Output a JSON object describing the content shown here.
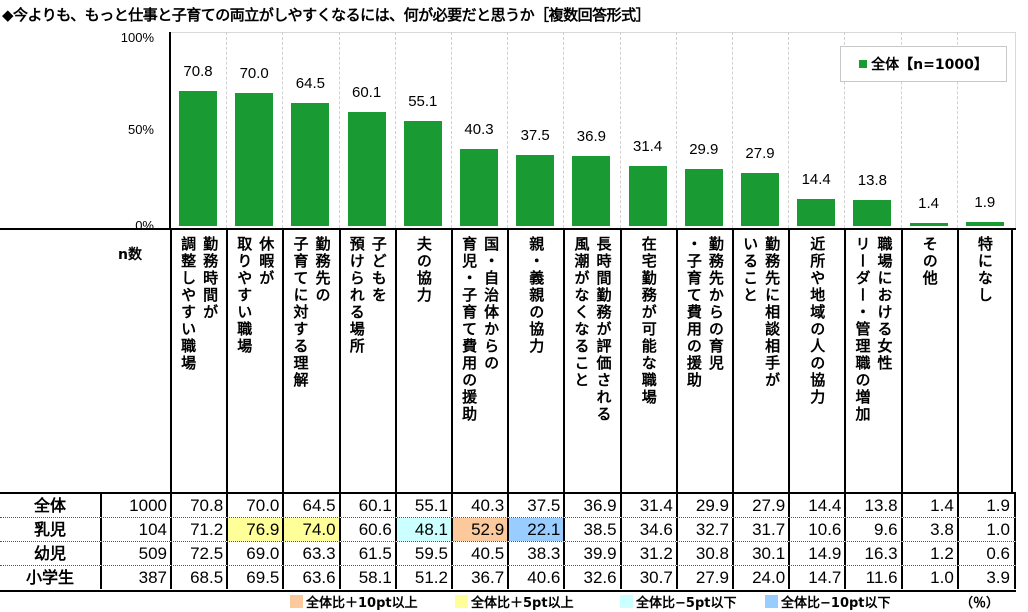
{
  "title": "◆今よりも、もっと仕事と子育ての両立がしやすくなるには、何が必要だと思うか［複数回答形式］",
  "chart_data": {
    "type": "bar",
    "title": "◆今よりも、もっと仕事と子育ての両立がしやすくなるには、何が必要だと思うか［複数回答形式］",
    "ylim": [
      0,
      100
    ],
    "yticks": [
      "0%",
      "50%",
      "100%"
    ],
    "legend": "全体【n=1000】",
    "legend_position": "top-right",
    "categories": [
      "勤務時間が\n調整しやすい職場",
      "休暇が\n取りやすい職場",
      "勤務先の\n子育てに対する理解",
      "子どもを\n預けられる場所",
      "夫の協力",
      "国・自治体からの\n育児・子育て費用の援助",
      "親・義親の協力",
      "長時間勤務が評価される\n風潮がなくなること",
      "在宅勤務が可能な職場",
      "勤務先からの育児\n・子育て費用の援助",
      "勤務先に相談相手が\nいること",
      "近所や地域の人の協力",
      "職場における女性\nリーダー・管理職の増加",
      "その他",
      "特になし"
    ],
    "values": [
      70.8,
      70.0,
      64.5,
      60.1,
      55.1,
      40.3,
      37.5,
      36.9,
      31.4,
      29.9,
      27.9,
      14.4,
      13.8,
      1.4,
      1.9
    ],
    "value_labels": [
      "70.8",
      "70.0",
      "64.5",
      "60.1",
      "55.1",
      "40.3",
      "37.5",
      "36.9",
      "31.4",
      "29.9",
      "27.9",
      "14.4",
      "13.8",
      "1.4",
      "1.9"
    ],
    "color": "#1a9a32"
  },
  "table": {
    "n_header": "n数",
    "rows": [
      {
        "label": "全体",
        "n": "1000",
        "values": [
          "70.8",
          "70.0",
          "64.5",
          "60.1",
          "55.1",
          "40.3",
          "37.5",
          "36.9",
          "31.4",
          "29.9",
          "27.9",
          "14.4",
          "13.8",
          "1.4",
          "1.9"
        ],
        "hl": [
          "",
          "",
          "",
          "",
          "",
          "",
          "",
          "",
          "",
          "",
          "",
          "",
          "",
          "",
          ""
        ]
      },
      {
        "label": "乳児",
        "n": "104",
        "values": [
          "71.2",
          "76.9",
          "74.0",
          "60.6",
          "48.1",
          "52.9",
          "22.1",
          "38.5",
          "34.6",
          "32.7",
          "31.7",
          "10.6",
          "9.6",
          "3.8",
          "1.0"
        ],
        "hl": [
          "",
          "p5",
          "p5",
          "",
          "m5",
          "p10",
          "m10",
          "",
          "",
          "",
          "",
          "",
          "",
          "",
          ""
        ]
      },
      {
        "label": "幼児",
        "n": "509",
        "values": [
          "72.5",
          "69.0",
          "63.3",
          "61.5",
          "59.5",
          "40.5",
          "38.3",
          "39.9",
          "31.2",
          "30.8",
          "30.1",
          "14.9",
          "16.3",
          "1.2",
          "0.6"
        ],
        "hl": [
          "",
          "",
          "",
          "",
          "",
          "",
          "",
          "",
          "",
          "",
          "",
          "",
          "",
          "",
          ""
        ]
      },
      {
        "label": "小学生",
        "n": "387",
        "values": [
          "68.5",
          "69.5",
          "63.6",
          "58.1",
          "51.2",
          "36.7",
          "40.6",
          "32.6",
          "30.7",
          "27.9",
          "24.0",
          "14.7",
          "11.6",
          "1.0",
          "3.9"
        ],
        "hl": [
          "",
          "",
          "",
          "",
          "",
          "",
          "",
          "",
          "",
          "",
          "",
          "",
          "",
          "",
          ""
        ]
      }
    ]
  },
  "highlight_colors": {
    "p10": "#fbc99c",
    "p5": "#ffff99",
    "m5": "#ccffff",
    "m10": "#99ccff"
  },
  "highlight_legend": [
    {
      "key": "p10",
      "label": "全体比＋10pt以上"
    },
    {
      "key": "p5",
      "label": "全体比＋5pt以上"
    },
    {
      "key": "m5",
      "label": "全体比−5pt以下"
    },
    {
      "key": "m10",
      "label": "全体比−10pt以下"
    }
  ],
  "unit": "（％）"
}
